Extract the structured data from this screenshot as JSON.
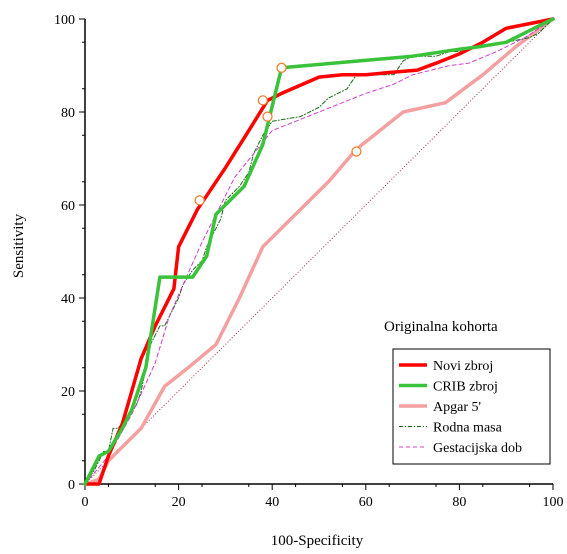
{
  "chart_data": {
    "type": "line",
    "xlabel": "100-Specificity",
    "ylabel": "Sensitivity",
    "xlim": [
      0,
      100
    ],
    "ylim": [
      0,
      100
    ],
    "xticks": [
      0,
      20,
      40,
      60,
      80,
      100
    ],
    "yticks": [
      0,
      20,
      40,
      60,
      80,
      100
    ],
    "grid": false,
    "annotation": "Originalna kohorta",
    "legend_position": "bottom-right",
    "reference_line": {
      "x": [
        0,
        100
      ],
      "y": [
        0,
        100
      ],
      "color": "#a0303a",
      "style": "dotted"
    },
    "series": [
      {
        "name": "Novi zbroj",
        "color": "#ff0000",
        "style": "solid-thick",
        "x": [
          0,
          3,
          5,
          8,
          12,
          15,
          17,
          19,
          20,
          24,
          30,
          35,
          39,
          42,
          50,
          55,
          60,
          65,
          71,
          75,
          80,
          85,
          90,
          95,
          100
        ],
        "y": [
          0,
          0,
          6,
          13,
          27,
          34,
          38,
          42,
          51,
          59,
          68,
          76,
          82.5,
          84,
          87.5,
          88,
          88,
          88.5,
          89,
          90.5,
          92.5,
          95,
          98,
          99,
          100
        ]
      },
      {
        "name": "CRIB zbroj",
        "color": "#3ac23a",
        "style": "solid-thick",
        "x": [
          0,
          3,
          5,
          8,
          10,
          13,
          16,
          20,
          23,
          26,
          28,
          34,
          38,
          42,
          70,
          80,
          84,
          90,
          94,
          98,
          100
        ],
        "y": [
          0,
          6,
          7,
          12,
          16,
          25,
          44.5,
          44.5,
          44.5,
          49,
          58,
          64,
          73,
          89.5,
          92,
          93.5,
          94,
          95,
          97,
          99,
          100
        ]
      },
      {
        "name": "Apgar 5'",
        "color": "#f4a0a0",
        "style": "solid-thick",
        "x": [
          0,
          3,
          5,
          12,
          17,
          22,
          28,
          33,
          38,
          45,
          52,
          58,
          68,
          77,
          85,
          92,
          100
        ],
        "y": [
          0,
          1,
          5,
          12,
          21,
          25,
          30,
          40,
          51,
          58,
          65,
          72,
          80,
          82,
          88,
          94,
          100
        ]
      },
      {
        "name": "Rodna masa",
        "color": "#1a6a1a",
        "style": "dash-dot",
        "x": [
          0,
          2,
          4,
          5,
          6,
          7,
          9,
          11,
          12,
          14,
          16,
          17,
          20,
          21,
          23,
          25,
          26,
          29,
          30,
          33,
          35,
          36,
          38,
          40,
          46,
          50,
          52,
          56,
          58,
          66,
          68,
          70,
          75,
          78,
          80,
          85,
          90,
          95,
          97,
          100
        ],
        "y": [
          0,
          3,
          7,
          7,
          12,
          12,
          14,
          17,
          20,
          30,
          34,
          34,
          40,
          43,
          46,
          48,
          51,
          57,
          61,
          64,
          67,
          71,
          75,
          78,
          79,
          81,
          83,
          85,
          88,
          88,
          91,
          92,
          92,
          93,
          93,
          94,
          95,
          96,
          97,
          100
        ]
      },
      {
        "name": "Gestacijska dob",
        "color": "#d040d0",
        "style": "dashed",
        "x": [
          0,
          5,
          10,
          15,
          18,
          21,
          25,
          28,
          32,
          36,
          40,
          45,
          50,
          55,
          60,
          66,
          70,
          74,
          78,
          82,
          88,
          94,
          100
        ],
        "y": [
          0,
          6,
          15,
          26,
          36,
          43,
          52,
          58,
          66,
          71,
          76,
          78,
          80,
          82,
          84,
          86,
          88,
          89,
          90,
          90.5,
          93,
          96,
          100
        ]
      }
    ],
    "markers": {
      "color": "#f08030",
      "points": [
        {
          "x": 24.5,
          "y": 61
        },
        {
          "x": 38,
          "y": 82.5
        },
        {
          "x": 39,
          "y": 79
        },
        {
          "x": 42,
          "y": 89.5
        },
        {
          "x": 58,
          "y": 71.5
        }
      ]
    }
  }
}
